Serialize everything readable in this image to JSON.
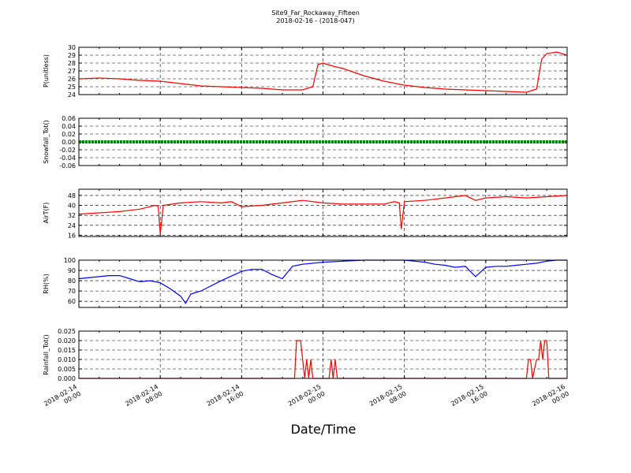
{
  "chart_data": {
    "type": "line",
    "title": "Site9_Far_Rockaway_Fifteen",
    "subtitle": "2018-02-16 - (2018-047)",
    "xlabel": "Date/Time",
    "x_range": [
      "2018-02-14 00:00",
      "2018-02-16 00:00"
    ],
    "x_tick_labels": [
      [
        "2018-02-14",
        "00:00"
      ],
      [
        "2018-02-14",
        "08:00"
      ],
      [
        "2018-02-14",
        "16:00"
      ],
      [
        "2018-02-15",
        "00:00"
      ],
      [
        "2018-02-15",
        "08:00"
      ],
      [
        "2018-02-15",
        "16:00"
      ],
      [
        "2018-02-16",
        "00:00"
      ]
    ],
    "grid": true,
    "panels": [
      {
        "ylabel": "P(unitless)",
        "color": "#ff0000",
        "ylim": [
          24,
          30
        ],
        "yticks": [
          "24",
          "25",
          "26",
          "27",
          "28",
          "29",
          "30"
        ],
        "series": {
          "hours": [
            0,
            2,
            4,
            5,
            6,
            8,
            10,
            12,
            14,
            16,
            18,
            20,
            22,
            23,
            23.5,
            24,
            25,
            26,
            28,
            30,
            32,
            34,
            36,
            38,
            40,
            42,
            44,
            45,
            45.5,
            46,
            47,
            48
          ],
          "values": [
            26.0,
            26.1,
            26.0,
            25.9,
            25.8,
            25.7,
            25.4,
            25.1,
            25.0,
            24.9,
            24.8,
            24.6,
            24.6,
            25.0,
            27.8,
            28.0,
            27.6,
            27.3,
            26.4,
            25.7,
            25.2,
            24.9,
            24.7,
            24.6,
            24.5,
            24.4,
            24.3,
            24.7,
            28.5,
            29.2,
            29.4,
            29.0
          ]
        }
      },
      {
        "ylabel": "Snowfall_Tot()",
        "color": "#008000",
        "ylim": [
          -0.06,
          0.06
        ],
        "yticks": [
          "-0.06",
          "-0.04",
          "-0.02",
          "0.00",
          "0.02",
          "0.04",
          "0.06"
        ],
        "series": {
          "hours": [
            0,
            48
          ],
          "values": [
            0.0,
            0.0
          ]
        }
      },
      {
        "ylabel": "AirT(F)",
        "color": "#ff0000",
        "ylim": [
          15,
          53
        ],
        "yticks": [
          "16",
          "24",
          "32",
          "40",
          "48"
        ],
        "series": {
          "hours": [
            0,
            2,
            4,
            5,
            6,
            7.5,
            7.8,
            8.0,
            8.3,
            10,
            12,
            14,
            15,
            16,
            18,
            20,
            22,
            24,
            26,
            28,
            30,
            31,
            31.5,
            31.7,
            32,
            34,
            36,
            38,
            39,
            40,
            42,
            44,
            46,
            48
          ],
          "values": [
            33,
            34,
            35,
            36,
            37,
            40,
            39,
            17,
            40,
            42,
            43,
            42,
            43,
            39,
            40,
            42,
            44,
            42,
            41,
            41,
            41,
            43,
            42,
            21,
            43,
            44,
            46,
            48,
            44,
            46,
            47,
            46,
            47,
            48
          ]
        }
      },
      {
        "ylabel": "RH(%)",
        "color": "#0000ff",
        "ylim": [
          54,
          100
        ],
        "yticks": [
          "60",
          "70",
          "80",
          "90",
          "100"
        ],
        "series": {
          "hours": [
            0,
            2,
            3,
            4,
            5,
            6,
            7,
            8,
            9,
            10,
            10.5,
            11,
            12,
            14,
            16,
            17,
            18,
            19,
            20,
            21,
            22,
            24,
            26,
            28,
            30,
            32,
            33,
            34,
            35,
            36,
            37,
            38,
            39,
            40,
            41,
            42,
            43,
            44,
            45,
            46,
            47,
            48
          ],
          "values": [
            82,
            84,
            85,
            85,
            82,
            79,
            80,
            78,
            72,
            65,
            58,
            67,
            70,
            80,
            89,
            91,
            91,
            86,
            82,
            94,
            96,
            98,
            99,
            100,
            100,
            100,
            99,
            98,
            96,
            95,
            93,
            94,
            84,
            93,
            94,
            94,
            95,
            96,
            97,
            99,
            100,
            100
          ]
        }
      },
      {
        "ylabel": "Rainfall_Tot()",
        "color": "#ff0000",
        "ylim": [
          0,
          0.025
        ],
        "yticks": [
          "0.000",
          "0.005",
          "0.010",
          "0.015",
          "0.020",
          "0.025"
        ],
        "series": {
          "hours": [
            0,
            21.2,
            21.4,
            21.8,
            22.2,
            22.4,
            22.6,
            22.8,
            23.0,
            23.2,
            23.4,
            24.6,
            24.8,
            25.0,
            25.2,
            25.4,
            44.0,
            44.2,
            44.4,
            44.6,
            45.0,
            45.2,
            45.4,
            45.6,
            45.8,
            46.0,
            46.2,
            46.4,
            46.6,
            48
          ],
          "values": [
            0,
            0,
            0.02,
            0.02,
            0,
            0.01,
            0,
            0.01,
            0,
            0,
            0,
            0,
            0.01,
            0,
            0.01,
            0,
            0,
            0.01,
            0.01,
            0,
            0.01,
            0.01,
            0.02,
            0.01,
            0.02,
            0.02,
            0,
            0,
            0,
            0
          ]
        }
      }
    ]
  }
}
